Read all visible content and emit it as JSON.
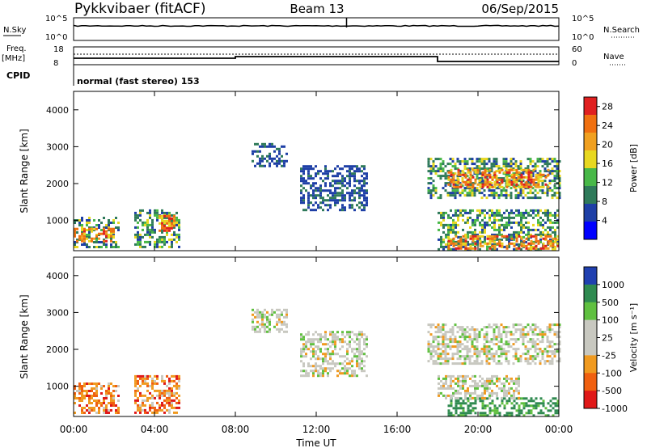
{
  "header": {
    "station": "Pykkvibaer (fitACF)",
    "beam": "Beam 13",
    "date": "06/Sep/2015"
  },
  "top_panels": {
    "nsky_label": "N.Sky",
    "nsky_ticks": [
      "10^5",
      "10^0"
    ],
    "nsearch_label": "N.Search",
    "nsearch_ticks": [
      "10^5",
      "10^0"
    ],
    "freq_label": "Freq.",
    "freq_unit": "[MHz]",
    "freq_ticks": [
      "18",
      "8"
    ],
    "nave_label": "Nave",
    "nave_ticks": [
      "60",
      "0"
    ],
    "cpid_label": "CPID",
    "cpid_text": "normal (fast stereo) 153"
  },
  "x_axis": {
    "label": "Time UT",
    "ticks": [
      "00:00",
      "04:00",
      "08:00",
      "12:00",
      "16:00",
      "20:00",
      "00:00"
    ]
  },
  "colors": {
    "power": [
      "#0000ff",
      "#1e3fa6",
      "#2f7a5a",
      "#48b848",
      "#e8d820",
      "#f0a020",
      "#f07010",
      "#e02020"
    ],
    "velocity": [
      "#e01818",
      "#f06010",
      "#f09a20",
      "#c8c8c0",
      "#c8c8c0",
      "#60c040",
      "#2f8a50",
      "#2040b0"
    ]
  },
  "chart_data": [
    {
      "type": "heatmap",
      "ylabel": "Slant Range [km]",
      "xlabel": "Time UT",
      "y_ticks": [
        "1000",
        "2000",
        "3000",
        "4000"
      ],
      "ylim": [
        180,
        4500
      ],
      "xlim_hours": [
        0,
        24
      ],
      "colorbar": {
        "label": "Power [dB]",
        "ticks": [
          "4",
          "8",
          "12",
          "16",
          "20",
          "24",
          "28"
        ],
        "range": [
          0,
          30
        ]
      },
      "regions": [
        {
          "t0": 0.0,
          "t1": 2.2,
          "r0": 300,
          "r1": 1100,
          "level": "med"
        },
        {
          "t0": 0.0,
          "t1": 2.0,
          "r0": 450,
          "r1": 800,
          "level": "high"
        },
        {
          "t0": 3.0,
          "t1": 5.2,
          "r0": 300,
          "r1": 1300,
          "level": "med"
        },
        {
          "t0": 4.2,
          "t1": 5.0,
          "r0": 700,
          "r1": 1150,
          "level": "high"
        },
        {
          "t0": 8.8,
          "t1": 10.6,
          "r0": 2500,
          "r1": 3100,
          "level": "low"
        },
        {
          "t0": 11.2,
          "t1": 14.5,
          "r0": 1300,
          "r1": 2500,
          "level": "low"
        },
        {
          "t0": 17.5,
          "t1": 24.0,
          "r0": 1600,
          "r1": 2700,
          "level": "med"
        },
        {
          "t0": 18.5,
          "t1": 23.5,
          "r0": 1900,
          "r1": 2400,
          "level": "high"
        },
        {
          "t0": 18.0,
          "t1": 24.0,
          "r0": 200,
          "r1": 1300,
          "level": "med"
        },
        {
          "t0": 18.5,
          "t1": 24.0,
          "r0": 220,
          "r1": 600,
          "level": "high"
        }
      ]
    },
    {
      "type": "heatmap",
      "ylabel": "Slant Range [km]",
      "xlabel": "Time UT",
      "y_ticks": [
        "1000",
        "2000",
        "3000",
        "4000"
      ],
      "ylim": [
        180,
        4500
      ],
      "xlim_hours": [
        0,
        24
      ],
      "colorbar": {
        "label": "Velocity [m s⁻¹]",
        "ticks": [
          "1000",
          "500",
          "100",
          "25",
          "-25",
          "-100",
          "-500",
          "-1000"
        ],
        "range": [
          -1000,
          1000
        ]
      },
      "regions": [
        {
          "t0": 0.0,
          "t1": 2.2,
          "r0": 300,
          "r1": 1100,
          "vel": "neg"
        },
        {
          "t0": 3.0,
          "t1": 5.2,
          "r0": 300,
          "r1": 1300,
          "vel": "neg"
        },
        {
          "t0": 8.8,
          "t1": 10.6,
          "r0": 2500,
          "r1": 3100,
          "vel": "zero"
        },
        {
          "t0": 11.2,
          "t1": 14.5,
          "r0": 1300,
          "r1": 2500,
          "vel": "zero"
        },
        {
          "t0": 17.5,
          "t1": 24.0,
          "r0": 1600,
          "r1": 2700,
          "vel": "zero"
        },
        {
          "t0": 18.5,
          "t1": 24.0,
          "r0": 200,
          "r1": 700,
          "vel": "pos"
        },
        {
          "t0": 18.0,
          "t1": 22.0,
          "r0": 700,
          "r1": 1300,
          "vel": "zero"
        }
      ]
    }
  ]
}
